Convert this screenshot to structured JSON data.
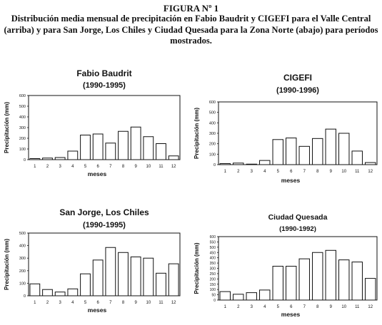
{
  "figure": {
    "label": "FIGURA Nº 1",
    "caption": "Distribución media mensual de precipitación en Fabio Baudrit y CIGEFI para el Valle Central (arriba) y para San Jorge, Los Chiles y Ciudad Quesada para la Zona Norte (abajo) para períodos mostrados."
  },
  "colors": {
    "ink": "#111111",
    "bar_fill": "#ffffff",
    "background": "#ffffff"
  },
  "chart_data": [
    {
      "type": "bar",
      "title": "Fabio Baudrit",
      "subtitle": "(1990-1995)",
      "xlabel": "meses",
      "ylabel": "Precipitación (mm)",
      "ylim": [
        0,
        600
      ],
      "yticks": [
        0,
        100,
        200,
        300,
        400,
        500,
        600
      ],
      "categories": [
        "1",
        "2",
        "3",
        "4",
        "5",
        "6",
        "7",
        "8",
        "9",
        "10",
        "11",
        "12"
      ],
      "values": [
        10,
        15,
        20,
        80,
        230,
        240,
        155,
        265,
        305,
        215,
        150,
        35
      ],
      "grid": false,
      "legend": "none"
    },
    {
      "type": "bar",
      "title": "CIGEFI",
      "subtitle": "(1990-1996)",
      "xlabel": "meses",
      "ylabel": "Precipitación (mm)",
      "ylim": [
        0,
        600
      ],
      "yticks": [
        0,
        100,
        200,
        300,
        400,
        500,
        600
      ],
      "categories": [
        "1",
        "2",
        "3",
        "4",
        "5",
        "6",
        "7",
        "8",
        "9",
        "10",
        "11",
        "12"
      ],
      "values": [
        10,
        15,
        5,
        40,
        240,
        255,
        175,
        250,
        340,
        300,
        130,
        20
      ],
      "grid": false,
      "legend": "none"
    },
    {
      "type": "bar",
      "title": "San Jorge, Los Chiles",
      "subtitle": "(1990-1995)",
      "xlabel": "meses",
      "ylabel": "Precipitación (mm)",
      "ylim": [
        0,
        500
      ],
      "yticks": [
        0,
        100,
        200,
        300,
        400,
        500
      ],
      "categories": [
        "1",
        "2",
        "3",
        "4",
        "5",
        "6",
        "7",
        "8",
        "9",
        "10",
        "11",
        "12"
      ],
      "values": [
        95,
        50,
        30,
        55,
        175,
        285,
        385,
        345,
        310,
        300,
        180,
        255
      ],
      "grid": false,
      "legend": "none"
    },
    {
      "type": "bar",
      "title": "Ciudad Quesada",
      "subtitle": "(1990-1992)",
      "xlabel": "meses",
      "ylabel": "Precipitación (mm)",
      "ylim": [
        0,
        600
      ],
      "yticks": [
        0,
        50,
        100,
        150,
        200,
        250,
        300,
        350,
        400,
        450,
        500,
        550,
        600
      ],
      "categories": [
        "1",
        "2",
        "3",
        "4",
        "5",
        "6",
        "7",
        "8",
        "9",
        "10",
        "11",
        "12"
      ],
      "values": [
        80,
        55,
        70,
        95,
        320,
        320,
        390,
        450,
        470,
        380,
        360,
        205
      ],
      "grid": false,
      "legend": "none"
    }
  ]
}
